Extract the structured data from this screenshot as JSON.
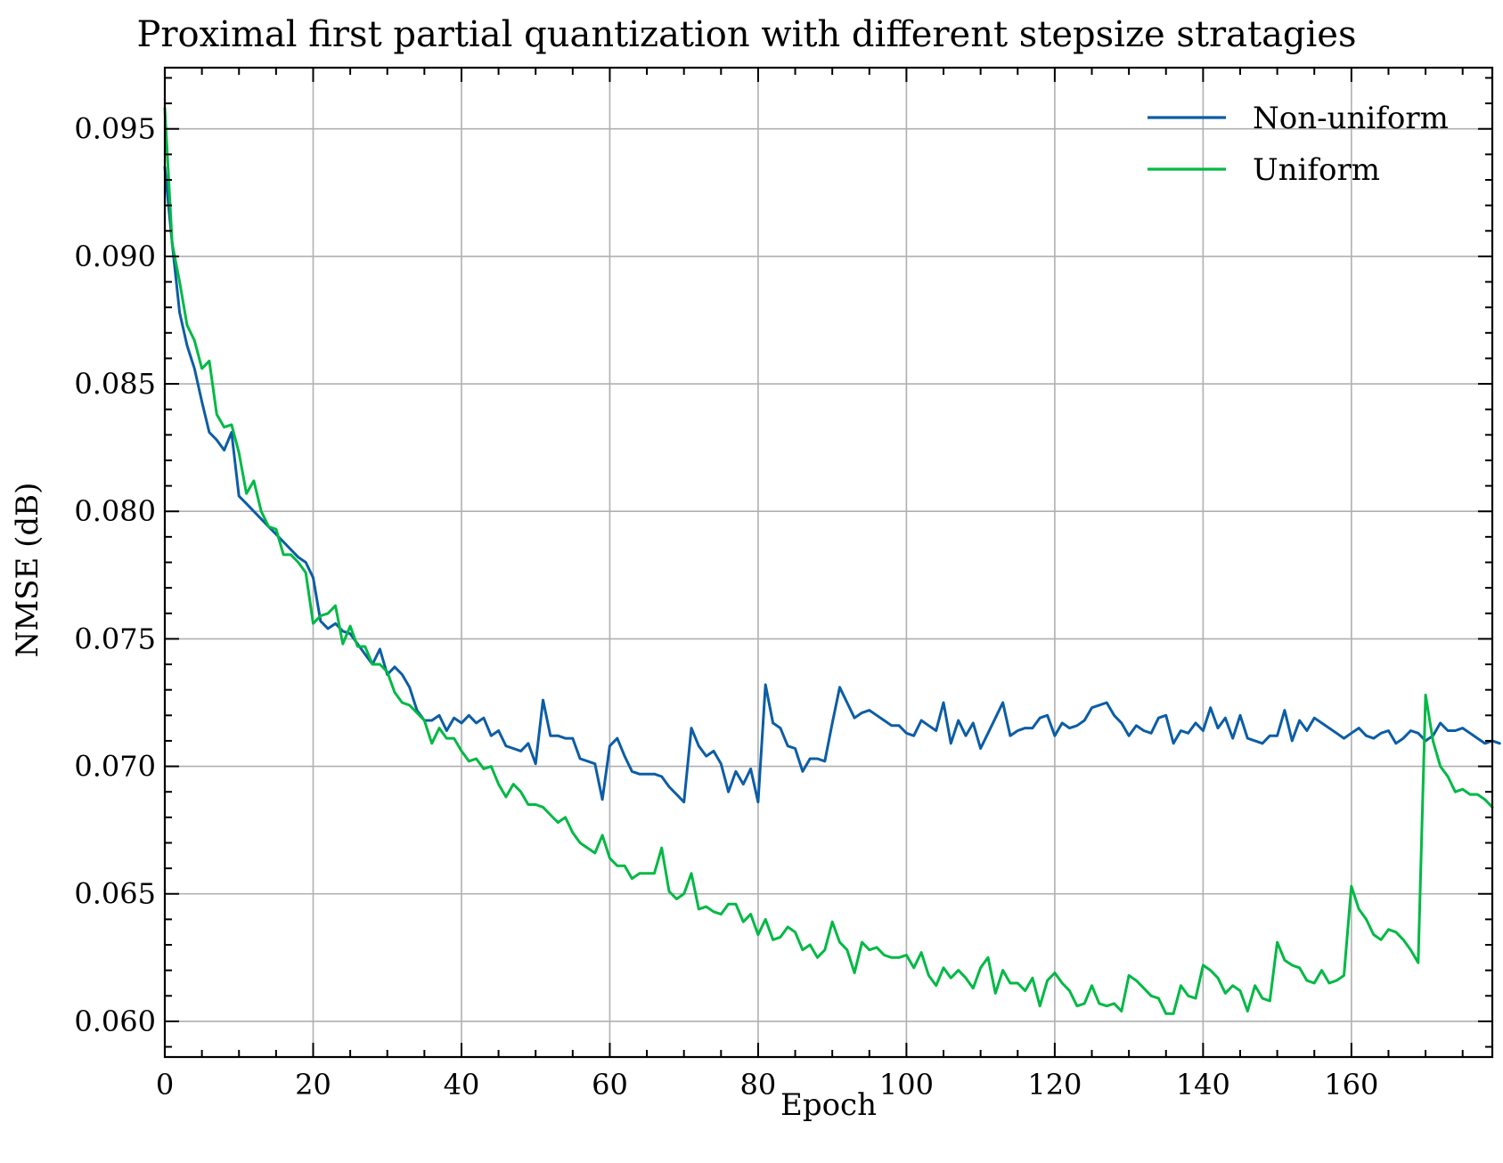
{
  "chart_data": {
    "type": "line",
    "title": "Proximal first partial quantization with different stepsize stratagies",
    "xlabel": "Epoch",
    "ylabel": "NMSE (dB)",
    "xlim": [
      0,
      179
    ],
    "ylim": [
      0.0586,
      0.0974
    ],
    "xticks": [
      0,
      20,
      40,
      60,
      80,
      100,
      120,
      140,
      160
    ],
    "yticks": [
      0.06,
      0.065,
      0.07,
      0.075,
      0.08,
      0.085,
      0.09,
      0.095
    ],
    "xtick_labels": [
      "0",
      "20",
      "40",
      "60",
      "80",
      "100",
      "120",
      "140",
      "160"
    ],
    "ytick_labels": [
      "0.060",
      "0.065",
      "0.070",
      "0.075",
      "0.080",
      "0.085",
      "0.090",
      "0.095"
    ],
    "grid": true,
    "legend_position": "top-right",
    "series": [
      {
        "name": "Non-uniform",
        "color": "#0C5DA5",
        "x_start": 0,
        "values": [
          0.0935,
          0.0905,
          0.0878,
          0.0865,
          0.0856,
          0.0843,
          0.0831,
          0.0828,
          0.0824,
          0.0831,
          0.0806,
          0.0803,
          0.08,
          0.0797,
          0.0794,
          0.0791,
          0.0788,
          0.0785,
          0.0782,
          0.078,
          0.0774,
          0.0757,
          0.0754,
          0.0756,
          0.0753,
          0.0752,
          0.0748,
          0.0744,
          0.074,
          0.0746,
          0.0736,
          0.0739,
          0.0736,
          0.0731,
          0.0722,
          0.0718,
          0.0718,
          0.072,
          0.0714,
          0.0719,
          0.0717,
          0.072,
          0.0717,
          0.0719,
          0.0712,
          0.0714,
          0.0708,
          0.0707,
          0.0706,
          0.0709,
          0.0701,
          0.0726,
          0.0712,
          0.0712,
          0.0711,
          0.0711,
          0.0703,
          0.0702,
          0.0701,
          0.0687,
          0.0708,
          0.0711,
          0.0704,
          0.0698,
          0.0697,
          0.0697,
          0.0697,
          0.0696,
          0.0692,
          0.0689,
          0.0686,
          0.0715,
          0.0708,
          0.0704,
          0.0706,
          0.0701,
          0.069,
          0.0698,
          0.0693,
          0.0699,
          0.0686,
          0.0732,
          0.0717,
          0.0715,
          0.0708,
          0.0707,
          0.0698,
          0.0703,
          0.0703,
          0.0702,
          0.0717,
          0.0731,
          0.0725,
          0.0719,
          0.0721,
          0.0722,
          0.072,
          0.0718,
          0.0716,
          0.0716,
          0.0713,
          0.0712,
          0.0718,
          0.0716,
          0.0714,
          0.0725,
          0.0709,
          0.0718,
          0.0712,
          0.0717,
          0.0707,
          0.0713,
          0.0719,
          0.0725,
          0.0712,
          0.0714,
          0.0715,
          0.0715,
          0.0719,
          0.072,
          0.0712,
          0.0717,
          0.0715,
          0.0716,
          0.0718,
          0.0723,
          0.0724,
          0.0725,
          0.072,
          0.0717,
          0.0712,
          0.0716,
          0.0714,
          0.0713,
          0.0719,
          0.072,
          0.0709,
          0.0714,
          0.0713,
          0.0717,
          0.0714,
          0.0723,
          0.0715,
          0.0719,
          0.0711,
          0.072,
          0.0711,
          0.071,
          0.0709,
          0.0712,
          0.0712,
          0.0722,
          0.071,
          0.0718,
          0.0714,
          0.0719,
          0.0717,
          0.0715,
          0.0713,
          0.0711,
          0.0713,
          0.0715,
          0.0712,
          0.0711,
          0.0713,
          0.0714,
          0.0709,
          0.0711,
          0.0714,
          0.0713,
          0.071,
          0.0712,
          0.0717,
          0.0714,
          0.0714,
          0.0715,
          0.0713,
          0.0711,
          0.0709,
          0.071,
          0.0709
        ]
      },
      {
        "name": "Uniform",
        "color": "#00B945",
        "x_start": 0,
        "values": [
          0.0958,
          0.0905,
          0.089,
          0.0873,
          0.0867,
          0.0856,
          0.0859,
          0.0838,
          0.0833,
          0.0834,
          0.0823,
          0.0807,
          0.0812,
          0.08,
          0.0794,
          0.0793,
          0.0783,
          0.0783,
          0.078,
          0.0776,
          0.0756,
          0.0759,
          0.076,
          0.0763,
          0.0748,
          0.0755,
          0.0747,
          0.0747,
          0.074,
          0.074,
          0.0737,
          0.0729,
          0.0725,
          0.0724,
          0.0721,
          0.0718,
          0.0709,
          0.0715,
          0.0711,
          0.0711,
          0.0706,
          0.0702,
          0.0703,
          0.0699,
          0.07,
          0.0693,
          0.0688,
          0.0693,
          0.069,
          0.0685,
          0.0685,
          0.0684,
          0.0681,
          0.0678,
          0.068,
          0.0674,
          0.067,
          0.0668,
          0.0666,
          0.0673,
          0.0664,
          0.0661,
          0.0661,
          0.0656,
          0.0658,
          0.0658,
          0.0658,
          0.0668,
          0.0651,
          0.0648,
          0.065,
          0.0658,
          0.0644,
          0.0645,
          0.0643,
          0.0642,
          0.0646,
          0.0646,
          0.0639,
          0.0642,
          0.0634,
          0.064,
          0.0632,
          0.0633,
          0.0637,
          0.0635,
          0.0628,
          0.063,
          0.0625,
          0.0628,
          0.0639,
          0.0631,
          0.0628,
          0.0619,
          0.0631,
          0.0628,
          0.0629,
          0.0626,
          0.0625,
          0.0625,
          0.0626,
          0.0621,
          0.0627,
          0.0618,
          0.0614,
          0.0621,
          0.0617,
          0.062,
          0.0617,
          0.0613,
          0.0621,
          0.0625,
          0.0611,
          0.062,
          0.0615,
          0.0615,
          0.0612,
          0.0617,
          0.0606,
          0.0616,
          0.0619,
          0.0615,
          0.0612,
          0.0606,
          0.0607,
          0.0614,
          0.0607,
          0.0606,
          0.0607,
          0.0604,
          0.0618,
          0.0616,
          0.0613,
          0.061,
          0.0609,
          0.0603,
          0.0603,
          0.0614,
          0.061,
          0.0609,
          0.0622,
          0.062,
          0.0617,
          0.0611,
          0.0614,
          0.0612,
          0.0604,
          0.0614,
          0.0609,
          0.0608,
          0.0631,
          0.0624,
          0.0622,
          0.0621,
          0.0616,
          0.0615,
          0.062,
          0.0615,
          0.0616,
          0.0618,
          0.0653,
          0.0644,
          0.064,
          0.0634,
          0.0632,
          0.0636,
          0.0635,
          0.0632,
          0.0628,
          0.0623,
          0.0728,
          0.071,
          0.07,
          0.0696,
          0.069,
          0.0691,
          0.0689,
          0.0689,
          0.0687,
          0.0684
        ]
      }
    ]
  }
}
